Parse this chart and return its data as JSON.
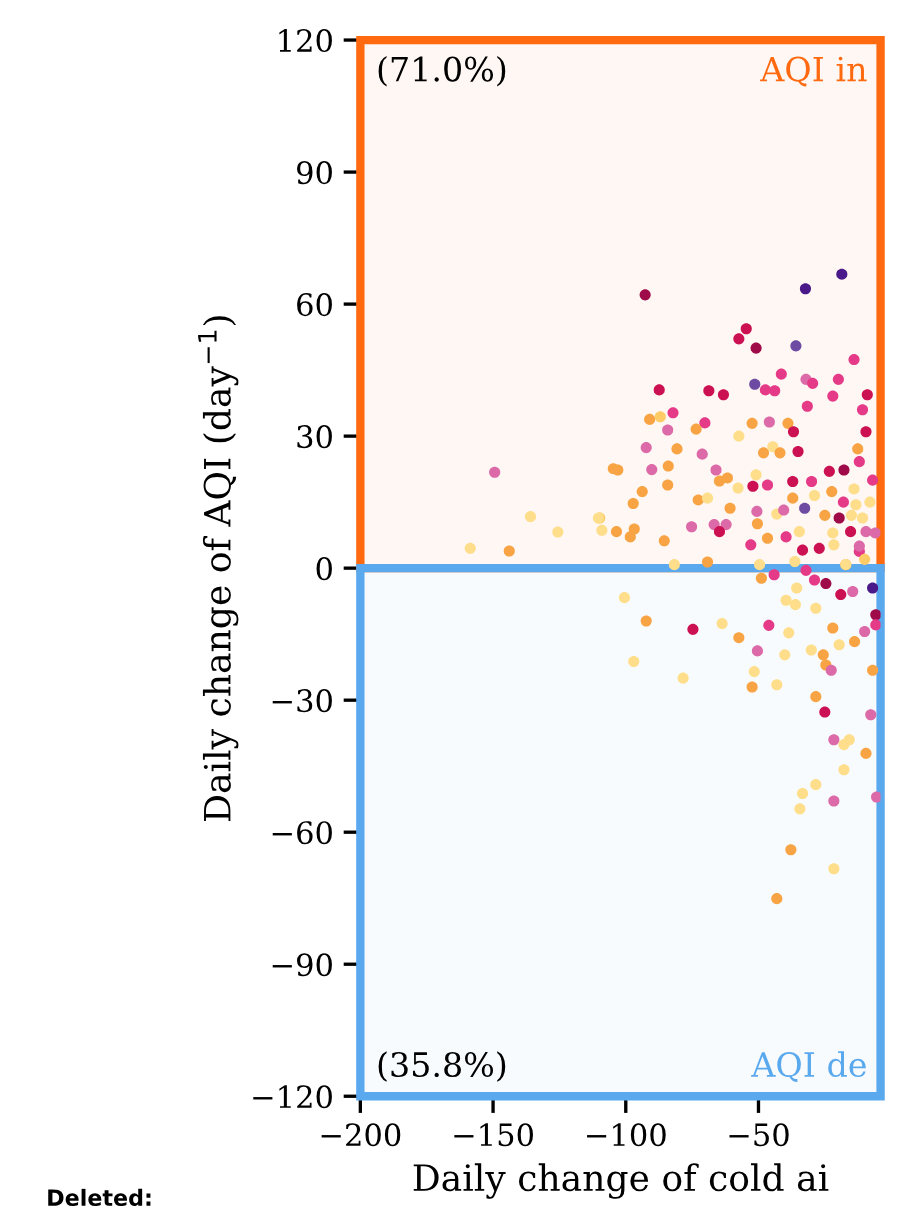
{
  "chart_data": {
    "type": "scatter",
    "xlabel": "Daily change of cold ai",
    "ylabel": "Daily change of AQI (day$^{−1}$)",
    "xlim": [
      -200,
      -4
    ],
    "xticks": [
      -200,
      -150,
      -100,
      -50
    ],
    "ylim": [
      -120,
      120
    ],
    "yticks": [
      -120,
      -90,
      -60,
      -30,
      0,
      30,
      60,
      90,
      120
    ],
    "grid": false,
    "marker": "circle",
    "bands": [
      {
        "axis": "y",
        "from": 0,
        "to": 120,
        "color": "#ff6a10"
      },
      {
        "axis": "y",
        "from": -120,
        "to": 0,
        "color": "#5aa9ee"
      }
    ],
    "annotations": [
      "(71.0%)",
      "AQI in",
      "(35.8%)",
      "AQI de",
      "Deleted:"
    ],
    "x": [
      -92.7,
      -32.3,
      -18.6,
      -54.6,
      -57.4,
      -50.9,
      -35.9,
      -51.4,
      -87.4,
      -68.7,
      -63.2,
      -47.4,
      -43.9,
      -41.4,
      -32.1,
      -29.6,
      -19.9,
      -14,
      -22,
      -31.6,
      -91,
      -87,
      -82.2,
      -70.2,
      -73.5,
      -84.2,
      -92.3,
      -80.7,
      -71.2,
      -57.4,
      -52.4,
      -45.9,
      -38.9,
      -36.8,
      -48.1,
      -44.6,
      -41.9,
      -35.1,
      -104.7,
      -103,
      -90.2,
      -84,
      -93.8,
      -84.2,
      -66,
      -61.7,
      -64.7,
      -50.9,
      -57.7,
      -52.1,
      -46.6,
      -37.1,
      -30,
      -23.3,
      -17.8,
      -109.8,
      -109,
      -97.2,
      -103.5,
      -96.8,
      -98.3,
      -85.5,
      -72.7,
      -69.2,
      -75.2,
      -66.7,
      -62.2,
      -64.7,
      -60.7,
      -50.6,
      -50.4,
      -52.9,
      -43.1,
      -46.6,
      -40.5,
      -37.1,
      -32.6,
      -28.9,
      -22.4,
      -19.6,
      -15.3,
      -13.3,
      -10.8,
      -21.6,
      -34.6,
      -39.6,
      -33.4,
      -27.1,
      -12,
      -9.5,
      -81.7,
      -69.2,
      -49.6,
      -36.3,
      -17.1,
      -12,
      -9.5,
      -10.8,
      -9,
      -12.6,
      -149.4,
      -135.9,
      -125.6,
      -110.3,
      -158.6,
      -143.9,
      -100.5,
      -92.3,
      -97,
      -78.4,
      -74.7,
      -63.7,
      -57.4,
      -50.4,
      -46.1,
      -38.6,
      -51.6,
      -52.4,
      -43.1,
      -40.1,
      -30.1,
      -25.6,
      -24.6,
      -22.6,
      -28.4,
      -25,
      -28.4,
      -22,
      -19.6,
      -13.8,
      -10,
      -7,
      -7.7,
      -21.6,
      -15.8,
      -17.8,
      -9.5,
      -17.8,
      -28.4,
      -33.4,
      -34.4,
      -21.6,
      -5.5,
      -37.8,
      -21.6,
      -43.1,
      -36.1,
      -39.6,
      -35.6,
      -24.6,
      -19,
      -14.5,
      -7,
      -5.8,
      -5.8,
      -48.9,
      -44.1,
      -32.1,
      -28.9,
      -17.1,
      -15,
      -12,
      -8,
      -18,
      -10,
      -6,
      -14,
      -7,
      -22,
      -25
    ],
    "values": [
      62.1,
      63.5,
      66.8,
      54.4,
      52.1,
      50,
      50.5,
      41.8,
      40.5,
      40.3,
      39.4,
      40.5,
      40.3,
      44.1,
      42.9,
      42,
      42.9,
      47.4,
      39.1,
      36.8,
      33.8,
      34.4,
      35.3,
      33,
      31.6,
      31.4,
      27.4,
      27.1,
      25.9,
      30,
      32.9,
      33.2,
      32.9,
      31,
      26.2,
      27.6,
      26.2,
      26.5,
      22.6,
      22.3,
      22.4,
      23.2,
      17.4,
      18.9,
      22.3,
      20.5,
      19.8,
      21.2,
      18.2,
      18.6,
      18.9,
      19.7,
      19.7,
      22,
      22.3,
      11.4,
      8.6,
      14.7,
      8.3,
      8.9,
      7.1,
      6.2,
      15.5,
      15.9,
      9.4,
      9.9,
      9.9,
      8.3,
      13.6,
      12.9,
      10.1,
      5.3,
      12.3,
      6.8,
      13.2,
      15.9,
      13.6,
      16.5,
      17.4,
      11.4,
      8.3,
      14.4,
      11.4,
      5.3,
      8.3,
      7.1,
      4.1,
      4.5,
      3.8,
      8.3,
      0.8,
      1.4,
      0.8,
      1.5,
      0.8,
      24.2,
      31,
      36,
      39.4,
      27.1,
      21.8,
      11.7,
      8.2,
      11.4,
      4.5,
      3.9,
      -6.7,
      -12,
      -21.2,
      -25,
      -13.9,
      -12.6,
      -15.8,
      -18.8,
      -13,
      -14.7,
      -23.5,
      -27,
      -26.5,
      -19.7,
      -18.6,
      -19.7,
      -22,
      -23.2,
      -29.2,
      -32.7,
      -9.1,
      -13.6,
      -17.4,
      -16.7,
      -14.4,
      -23.2,
      -33.3,
      -39,
      -39,
      -40.1,
      -42.1,
      -45.8,
      -49.2,
      -51.2,
      -54.7,
      -52.9,
      -52,
      -64,
      -68.3,
      -75.1,
      -8.3,
      -7.3,
      -4.5,
      -3.5,
      -6,
      -5.3,
      -4.5,
      -10.6,
      -12.9,
      -2.3,
      -1.5,
      -0.5,
      -2.7,
      0.8,
      12,
      5,
      15,
      15,
      2,
      8,
      18,
      20,
      8,
      12
    ],
    "colors": [
      "#9e0b48",
      "#4a1a8a",
      "#4a1a8a",
      "#cc1153",
      "#cc1153",
      "#9e0b48",
      "#6e4ba3",
      "#6e4ba3",
      "#cc1153",
      "#cc1153",
      "#cc1153",
      "#e53a87",
      "#e53a87",
      "#e53a87",
      "#dc6aa8",
      "#e53a87",
      "#e53a87",
      "#e53a87",
      "#e53a87",
      "#e53a87",
      "#f8a445",
      "#fecc66",
      "#e53a87",
      "#e53a87",
      "#f8a445",
      "#dc6aa8",
      "#dc6aa8",
      "#f8a445",
      "#dc6aa8",
      "#fede8a",
      "#f8a445",
      "#dc6aa8",
      "#f8a445",
      "#cc1153",
      "#f8a445",
      "#fede8a",
      "#f8a445",
      "#cc1153",
      "#f8a445",
      "#f8a445",
      "#dc6aa8",
      "#f8a445",
      "#f8a445",
      "#f8a445",
      "#dc6aa8",
      "#f8a445",
      "#f8a445",
      "#fede8a",
      "#fede8a",
      "#cc1153",
      "#e53a87",
      "#cc1153",
      "#e53a87",
      "#cc1153",
      "#9e0b48",
      "#fecc66",
      "#fede8a",
      "#f8a445",
      "#f8a445",
      "#f8a445",
      "#f8a445",
      "#f8a445",
      "#f8a445",
      "#fede8a",
      "#dc6aa8",
      "#dc6aa8",
      "#dc6aa8",
      "#cc1153",
      "#f8a445",
      "#dc6aa8",
      "#f8a445",
      "#e53a87",
      "#fede8a",
      "#f8a445",
      "#dc6aa8",
      "#f8a445",
      "#6e4ba3",
      "#fede8a",
      "#f8a445",
      "#9e0b48",
      "#cc1153",
      "#fede8a",
      "#fede8a",
      "#fede8a",
      "#fede8a",
      "#e53a87",
      "#cc1153",
      "#cc1153",
      "#e53a87",
      "#dc6aa8",
      "#fede8a",
      "#f8a445",
      "#fede8a",
      "#fede8a",
      "#f8a445",
      "#e53a87",
      "#cc1153",
      "#e53a87",
      "#cc1153",
      "#f8a445",
      "#dc6aa8",
      "#fede8a",
      "#fede8a",
      "#fede8a",
      "#fede8a",
      "#f8a445",
      "#fede8a",
      "#f8a445",
      "#fede8a",
      "#fede8a",
      "#cc1153",
      "#fede8a",
      "#f8a445",
      "#dc6aa8",
      "#e53a87",
      "#fede8a",
      "#fede8a",
      "#f8a445",
      "#fede8a",
      "#fede8a",
      "#fede8a",
      "#f8a445",
      "#f8a445",
      "#dc6aa8",
      "#f8a445",
      "#cc1153",
      "#fede8a",
      "#f8a445",
      "#fede8a",
      "#f8a445",
      "#dc6aa8",
      "#f8a445",
      "#dc6aa8",
      "#dc6aa8",
      "#fede8a",
      "#fede8a",
      "#f8a445",
      "#fede8a",
      "#fede8a",
      "#fede8a",
      "#fede8a",
      "#dc6aa8",
      "#dc6aa8",
      "#f8a445",
      "#fede8a",
      "#f8a445",
      "#fede8a",
      "#fede8a",
      "#fede8a",
      "#9e0b48",
      "#cc1153",
      "#dc6aa8",
      "#4a1a8a",
      "#9e0b48",
      "#e53a87",
      "#f8a445",
      "#e53a87",
      "#e53a87",
      "#e53a87",
      "#fede8a",
      "#fede8a",
      "#dc6aa8",
      "#fede8a",
      "#e53a87",
      "#fecc66",
      "#dc6aa8",
      "#fede8a",
      "#e53a87",
      "#fede8a",
      "#f8a445"
    ]
  }
}
